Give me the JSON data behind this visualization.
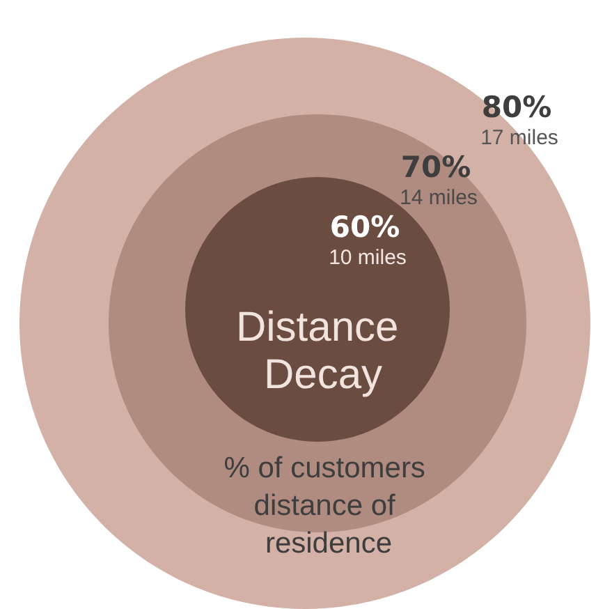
{
  "chart_data": {
    "type": "other",
    "title": "Distance Decay",
    "categories": [
      "10 miles",
      "14 miles",
      "17 miles"
    ],
    "values": [
      60,
      70,
      80
    ],
    "value_labels": [
      "60%",
      "70%",
      "80%"
    ],
    "colors": [
      "#6b4c40",
      "#b08b80",
      "#d4b1a6"
    ],
    "annotations": [
      "% of customers distance of residence"
    ]
  }
}
